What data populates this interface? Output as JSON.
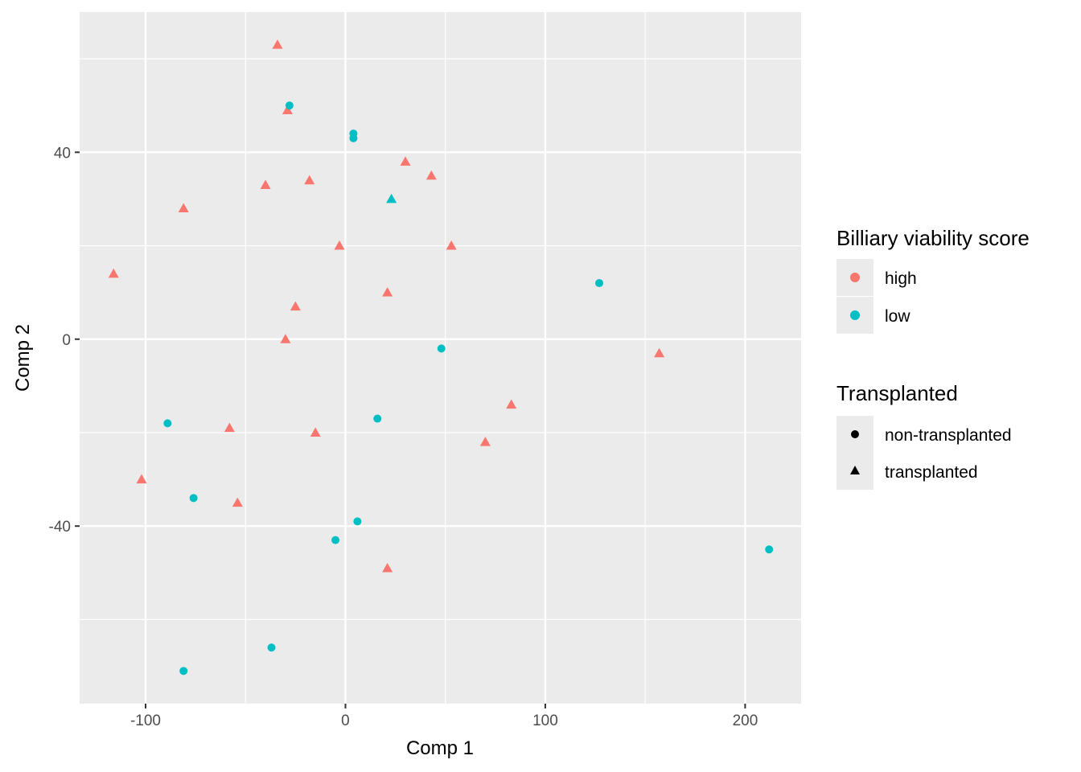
{
  "chart_data": {
    "type": "scatter",
    "xlabel": "Comp 1",
    "ylabel": "Comp 2",
    "xlim": [
      -133,
      228
    ],
    "ylim": [
      -78,
      70
    ],
    "x_major_ticks": [
      -100,
      0,
      100,
      200
    ],
    "x_tick_labels": [
      "-100",
      "0",
      "100",
      "200"
    ],
    "x_minor_ticks": [
      -50,
      50,
      150
    ],
    "y_major_ticks": [
      -40,
      0,
      40
    ],
    "y_tick_labels": [
      "-40",
      "0",
      "40"
    ],
    "y_minor_ticks": [
      -60,
      -20,
      20,
      60
    ],
    "grid": true,
    "panel_background": "#ebebeb",
    "legend_position": "right",
    "legends": [
      {
        "title": "Billiary viability score",
        "kind": "color",
        "entries": [
          {
            "label": "high",
            "color": "#f8766d"
          },
          {
            "label": "low",
            "color": "#00bfc4"
          }
        ]
      },
      {
        "title": "Transplanted",
        "kind": "shape",
        "entries": [
          {
            "label": "non-transplanted",
            "shape": "circle"
          },
          {
            "label": "transplanted",
            "shape": "triangle"
          }
        ]
      }
    ],
    "series": [
      {
        "group": "high / transplanted",
        "color": "#f8766d",
        "shape": "triangle",
        "points": [
          {
            "x": -34,
            "y": 63
          },
          {
            "x": -29,
            "y": 49
          },
          {
            "x": 30,
            "y": 38
          },
          {
            "x": 43,
            "y": 35
          },
          {
            "x": -18,
            "y": 34
          },
          {
            "x": -40,
            "y": 33
          },
          {
            "x": -81,
            "y": 28
          },
          {
            "x": -3,
            "y": 20
          },
          {
            "x": 53,
            "y": 20
          },
          {
            "x": -116,
            "y": 14
          },
          {
            "x": 21,
            "y": 10
          },
          {
            "x": -25,
            "y": 7
          },
          {
            "x": -30,
            "y": 0
          },
          {
            "x": 157,
            "y": -3
          },
          {
            "x": 83,
            "y": -14
          },
          {
            "x": -58,
            "y": -19
          },
          {
            "x": -15,
            "y": -20
          },
          {
            "x": 70,
            "y": -22
          },
          {
            "x": -102,
            "y": -30
          },
          {
            "x": -54,
            "y": -35
          },
          {
            "x": 21,
            "y": -49
          }
        ]
      },
      {
        "group": "low / transplanted",
        "color": "#00bfc4",
        "shape": "triangle",
        "points": [
          {
            "x": 23,
            "y": 30
          }
        ]
      },
      {
        "group": "low / non-transplanted",
        "color": "#00bfc4",
        "shape": "circle",
        "points": [
          {
            "x": -28,
            "y": 50
          },
          {
            "x": 4,
            "y": 44
          },
          {
            "x": 4,
            "y": 43
          },
          {
            "x": 127,
            "y": 12
          },
          {
            "x": 48,
            "y": -2
          },
          {
            "x": -89,
            "y": -18
          },
          {
            "x": 16,
            "y": -17
          },
          {
            "x": -76,
            "y": -34
          },
          {
            "x": 6,
            "y": -39
          },
          {
            "x": -5,
            "y": -43
          },
          {
            "x": 212,
            "y": -45
          },
          {
            "x": -37,
            "y": -66
          },
          {
            "x": -81,
            "y": -71
          }
        ]
      }
    ]
  }
}
